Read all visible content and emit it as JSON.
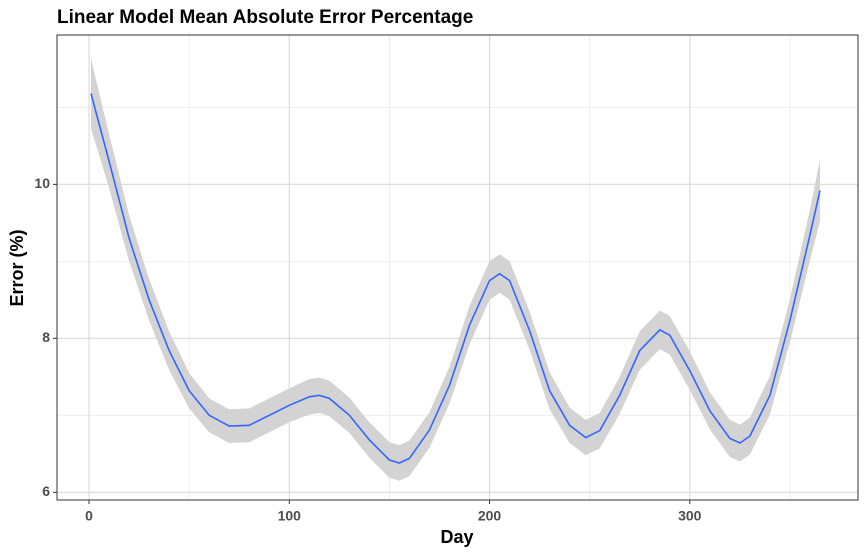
{
  "chart_data": {
    "type": "line",
    "title": "Linear Model Mean Absolute Error Percentage",
    "x_label": "Day",
    "y_label": "Error (%)",
    "x": [
      1,
      10,
      20,
      30,
      40,
      50,
      60,
      70,
      80,
      90,
      100,
      110,
      115,
      120,
      130,
      140,
      150,
      155,
      160,
      170,
      180,
      190,
      200,
      205,
      210,
      220,
      230,
      240,
      248,
      255,
      265,
      275,
      285,
      290,
      300,
      310,
      320,
      325,
      330,
      340,
      350,
      360,
      365
    ],
    "series": [
      {
        "color": "#3366ff",
        "values": [
          11.18,
          10.3,
          9.3,
          8.5,
          7.84,
          7.32,
          7.0,
          6.86,
          6.87,
          7.0,
          7.13,
          7.24,
          7.26,
          7.22,
          7.0,
          6.68,
          6.42,
          6.38,
          6.44,
          6.81,
          7.39,
          8.17,
          8.75,
          8.84,
          8.75,
          8.1,
          7.32,
          6.87,
          6.71,
          6.8,
          7.26,
          7.84,
          8.11,
          8.04,
          7.58,
          7.06,
          6.7,
          6.64,
          6.73,
          7.26,
          8.23,
          9.34,
          9.92
        ]
      }
    ],
    "band": {
      "color": "#d3d3d3",
      "lower": [
        10.73,
        9.95,
        9.0,
        8.23,
        7.59,
        7.09,
        6.78,
        6.64,
        6.65,
        6.78,
        6.91,
        7.01,
        7.03,
        6.99,
        6.77,
        6.45,
        6.19,
        6.15,
        6.21,
        6.58,
        7.15,
        7.92,
        8.5,
        8.59,
        8.5,
        7.85,
        7.08,
        6.64,
        6.48,
        6.57,
        7.02,
        7.59,
        7.86,
        7.79,
        7.33,
        6.82,
        6.46,
        6.4,
        6.49,
        7.01,
        7.95,
        9.01,
        9.52
      ],
      "upper": [
        11.63,
        10.65,
        9.6,
        8.77,
        8.09,
        7.55,
        7.22,
        7.08,
        7.09,
        7.22,
        7.35,
        7.47,
        7.49,
        7.45,
        7.23,
        6.91,
        6.65,
        6.61,
        6.67,
        7.04,
        7.63,
        8.42,
        9.0,
        9.09,
        9.0,
        8.35,
        7.56,
        7.1,
        6.94,
        7.03,
        7.5,
        8.09,
        8.36,
        8.29,
        7.83,
        7.3,
        6.94,
        6.88,
        6.97,
        7.51,
        8.51,
        9.67,
        10.32
      ]
    },
    "xlim": [
      -16,
      384
    ],
    "ylim": [
      5.9,
      11.94
    ],
    "xticks": [
      0,
      100,
      200,
      300
    ],
    "yticks": [
      6,
      8,
      10
    ],
    "x_minor_grid": [
      50,
      150,
      250,
      350
    ],
    "y_minor_grid": [
      7,
      9,
      11
    ],
    "grid": true
  }
}
